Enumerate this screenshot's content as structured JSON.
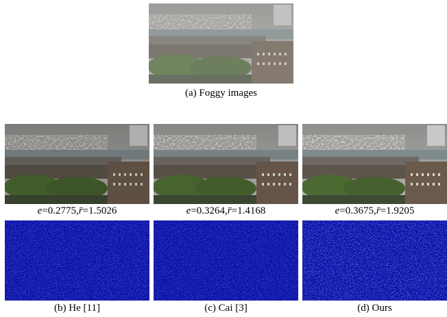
{
  "top": {
    "caption": "(a) Foggy images"
  },
  "methods": [
    {
      "caption": "(b) He [11]",
      "e_symbol": "e",
      "e_value": "=0.2775,",
      "r_symbol": "r̄",
      "r_value": "=1.5026"
    },
    {
      "caption": "(c) Cai [3]",
      "e_symbol": "e",
      "e_value": "=0.3264,",
      "r_symbol": "r̄",
      "r_value": "=1.4168"
    },
    {
      "caption": "(d) Ours",
      "e_symbol": "e",
      "e_value": "=0.3675,",
      "r_symbol": "r̄",
      "r_value": "=1.9205"
    }
  ]
}
